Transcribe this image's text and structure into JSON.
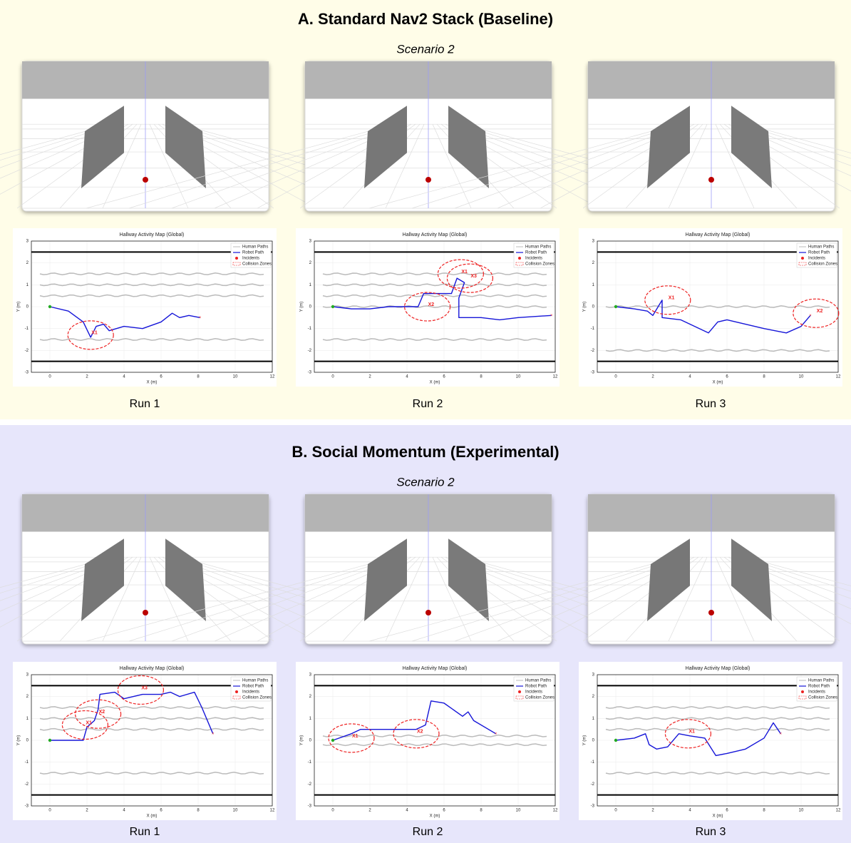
{
  "plot_title": "Hallway Activity Map (Global)",
  "x_label": "X (m)",
  "y_label": "Y (m)",
  "legend": [
    "Human Paths",
    "Robot Path",
    "Incidents",
    "Collision Zones"
  ],
  "xlim": [
    -1,
    12
  ],
  "ylim": [
    -3,
    3
  ],
  "xticks": [
    0,
    2,
    4,
    6,
    8,
    10,
    12
  ],
  "yticks": [
    -3,
    -2,
    -1,
    0,
    1,
    2,
    3
  ],
  "panels": [
    {
      "title": "A. Standard Nav2 Stack (Baseline)",
      "scenario": "Scenario 2",
      "runs": [
        {
          "label": "Run 1",
          "walls": [
            2.5,
            -2.5
          ],
          "human_lanes": [
            1.5,
            1,
            0.5,
            -1.5
          ],
          "path": {
            "x": [
              0,
              1,
              1.8,
              2.2,
              2.5,
              2.9,
              3.2,
              4,
              5,
              6,
              6.6,
              7,
              7.5,
              8.1
            ],
            "y": [
              0,
              -0.2,
              -0.7,
              -1.4,
              -0.9,
              -0.8,
              -1.1,
              -0.9,
              -1.0,
              -0.7,
              -0.3,
              -0.5,
              -0.4,
              -0.5
            ]
          },
          "incidents": [
            {
              "label": "X1",
              "x": 2.2,
              "y": -1.3
            }
          ]
        },
        {
          "label": "Run 2",
          "walls": [
            2.5,
            -2.5
          ],
          "human_lanes": [
            1.5,
            1,
            0.5,
            0,
            -1.5
          ],
          "path": {
            "x": [
              0,
              1,
              2,
              3,
              4,
              4.6,
              4.9,
              5.5,
              6.4,
              6.7,
              7.1,
              6.8,
              6.8,
              8,
              9,
              10,
              11.8
            ],
            "y": [
              0,
              -0.1,
              -0.1,
              0,
              0,
              0,
              0.6,
              0.6,
              0.6,
              1.3,
              1.1,
              0.4,
              -0.5,
              -0.5,
              -0.6,
              -0.5,
              -0.4
            ]
          },
          "incidents": [
            {
              "label": "X1",
              "x": 6.9,
              "y": 1.5
            },
            {
              "label": "X2",
              "x": 5.1,
              "y": 0
            },
            {
              "label": "X3",
              "x": 7.4,
              "y": 1.3
            }
          ]
        },
        {
          "label": "Run 3",
          "walls": [
            2.5,
            -2.5
          ],
          "human_lanes": [
            0,
            -2
          ],
          "path": {
            "x": [
              0,
              1,
              1.7,
              2,
              2.5,
              2.5,
              3.5,
              4.5,
              5,
              5.5,
              6,
              7,
              8,
              9.2,
              10,
              10.5
            ],
            "y": [
              0,
              -0.1,
              -0.2,
              -0.4,
              0.3,
              -0.5,
              -0.6,
              -1.0,
              -1.2,
              -0.7,
              -0.6,
              -0.8,
              -1.0,
              -1.2,
              -0.9,
              -0.4
            ]
          },
          "incidents": [
            {
              "label": "X1",
              "x": 2.8,
              "y": 0.3
            },
            {
              "label": "X2",
              "x": 10.8,
              "y": -0.3
            }
          ]
        }
      ]
    },
    {
      "title": "B. Social Momentum (Experimental)",
      "scenario": "Scenario 2",
      "runs": [
        {
          "label": "Run 1",
          "walls": [
            2.5,
            -2.5
          ],
          "human_lanes": [
            1.5,
            1,
            0.5,
            -1.5
          ],
          "path": {
            "x": [
              0,
              1,
              1.8,
              2,
              2.4,
              2.6,
              2.7,
              3.5,
              4,
              5,
              6,
              6.5,
              7,
              7.8,
              8.2,
              8.8
            ],
            "y": [
              0,
              0,
              0,
              0.6,
              0.9,
              1.4,
              2.1,
              2.2,
              1.9,
              2.1,
              2.1,
              2.2,
              2.0,
              2.2,
              1.5,
              0.3
            ]
          },
          "incidents": [
            {
              "label": "X1",
              "x": 1.9,
              "y": 0.7
            },
            {
              "label": "X2",
              "x": 2.6,
              "y": 1.2
            },
            {
              "label": "X3",
              "x": 4.9,
              "y": 2.3
            }
          ]
        },
        {
          "label": "Run 2",
          "walls": [
            2.5,
            -2.5
          ],
          "human_lanes": [
            0.2,
            -0.2
          ],
          "path": {
            "x": [
              0,
              1,
              1.5,
              3,
              4.5,
              5,
              5.3,
              6,
              7,
              7.3,
              7.6,
              8.8
            ],
            "y": [
              0,
              0.3,
              0.5,
              0.5,
              0.5,
              0.7,
              1.8,
              1.7,
              1.1,
              1.3,
              0.9,
              0.3
            ]
          },
          "incidents": [
            {
              "label": "X1",
              "x": 1,
              "y": 0.1
            },
            {
              "label": "X2",
              "x": 4.5,
              "y": 0.3
            }
          ]
        },
        {
          "label": "Run 3",
          "walls": [
            2.5,
            -2.5
          ],
          "human_lanes": [
            1.5,
            1,
            0.5,
            -1.5
          ],
          "path": {
            "x": [
              0,
              1,
              1.6,
              1.8,
              2.2,
              2.8,
              3.4,
              4,
              4.8,
              5.4,
              6,
              7,
              8,
              8.5,
              8.9
            ],
            "y": [
              0,
              0.1,
              0.3,
              -0.2,
              -0.4,
              -0.3,
              0.3,
              0.2,
              0.1,
              -0.7,
              -0.6,
              -0.4,
              0.1,
              0.8,
              0.3
            ]
          },
          "incidents": [
            {
              "label": "X1",
              "x": 3.9,
              "y": 0.3
            }
          ]
        }
      ]
    }
  ]
}
